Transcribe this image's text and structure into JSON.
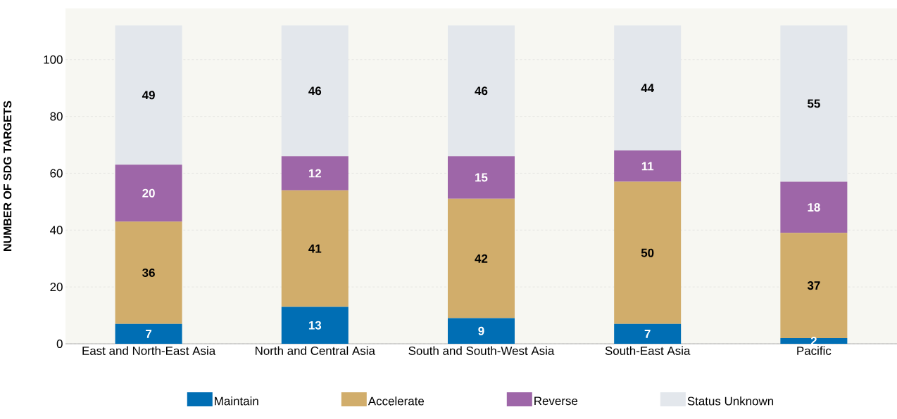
{
  "chart_data": {
    "type": "bar",
    "stacked": true,
    "ylabel": "NUMBER OF SDG TARGETS",
    "categories": [
      "East and North-East Asia",
      "North and Central Asia",
      "South and South-West Asia",
      "South-East Asia",
      "Pacific"
    ],
    "series": [
      {
        "name": "Maintain",
        "color": "#006eb4",
        "values": [
          7,
          13,
          9,
          7,
          2
        ]
      },
      {
        "name": "Accelerate",
        "color": "#d1ad6b",
        "values": [
          36,
          41,
          42,
          50,
          37
        ]
      },
      {
        "name": "Reverse",
        "color": "#9e66a8",
        "values": [
          20,
          12,
          15,
          11,
          18
        ]
      },
      {
        "name": "Status Unknown",
        "color": "#e3e7ec",
        "values": [
          49,
          46,
          46,
          44,
          55
        ]
      }
    ],
    "ylim": [
      0,
      118
    ],
    "yticks": [
      0,
      20,
      40,
      60,
      80,
      100
    ],
    "grid": "y",
    "legend": "bottom",
    "data_labels": true
  }
}
